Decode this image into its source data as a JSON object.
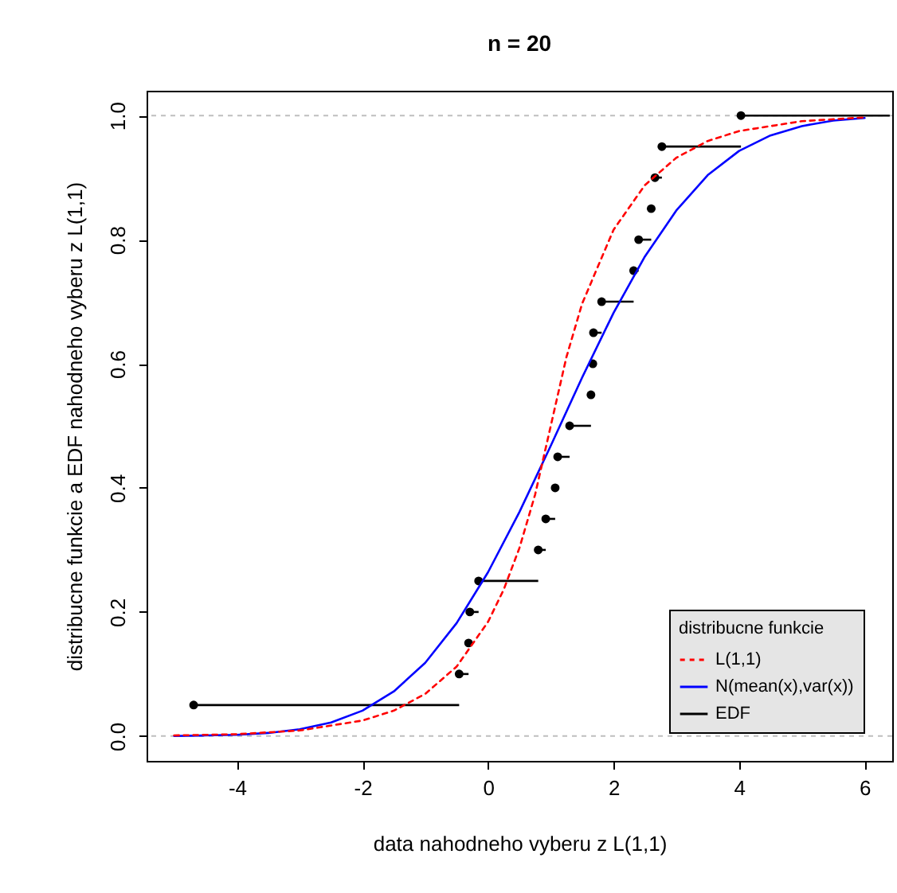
{
  "chart_data": {
    "type": "line",
    "title": "n = 20",
    "xlabel": "data nahodneho vyberu z L(1,1)",
    "ylabel": "distribucne funkcie a EDF nahodneho vyberu z L(1,1)",
    "legend_title": "distribucne funkcie",
    "xlim": [
      -5.44,
      6.44
    ],
    "ylim": [
      -0.04,
      1.04
    ],
    "xticks": [
      -4,
      -2,
      0,
      2,
      4,
      6
    ],
    "yticks": [
      {
        "value": 0,
        "label": "0.0"
      },
      0.2,
      0.4,
      0.6,
      0.8,
      {
        "value": 1,
        "label": "1.0"
      }
    ],
    "legend": "bottom right",
    "ref_lines": [
      {
        "axis": "y",
        "value": 0,
        "color": "#bebebe",
        "line_style": "dashed"
      },
      {
        "axis": "y",
        "value": 1,
        "color": "#bebebe",
        "line_style": "dashed"
      }
    ],
    "series": [
      {
        "name": "L(1,1)",
        "color": "#ff0000",
        "line_style": "dashed",
        "x": [
          -5,
          -4,
          -3,
          -2,
          -1.5,
          -1,
          -0.5,
          0,
          0.25,
          0.5,
          0.75,
          1,
          1.25,
          1.5,
          2,
          2.5,
          3,
          3.5,
          4,
          5,
          6
        ],
        "values": [
          0.001,
          0.003,
          0.009,
          0.025,
          0.041,
          0.068,
          0.112,
          0.184,
          0.236,
          0.303,
          0.389,
          0.5,
          0.611,
          0.697,
          0.816,
          0.888,
          0.932,
          0.959,
          0.975,
          0.991,
          0.997
        ]
      },
      {
        "name": "N(mean(x),var(x))",
        "color": "#0000ff",
        "line_style": "solid",
        "x": [
          -5,
          -4.5,
          -4,
          -3.5,
          -3,
          -2.5,
          -2,
          -1.5,
          -1,
          -0.5,
          0,
          0.5,
          1,
          1.5,
          2,
          2.5,
          3,
          3.5,
          4,
          4.5,
          5,
          5.5,
          6
        ],
        "values": [
          0.0,
          0.001,
          0.002,
          0.005,
          0.011,
          0.022,
          0.041,
          0.072,
          0.118,
          0.182,
          0.264,
          0.361,
          0.468,
          0.578,
          0.682,
          0.773,
          0.847,
          0.904,
          0.943,
          0.968,
          0.983,
          0.992,
          0.996
        ]
      },
      {
        "name": "EDF",
        "type": "scatter",
        "color": "#000000",
        "line_style": "solid",
        "marker": "circle",
        "x": [
          -4.69,
          -0.46,
          -0.31,
          -0.29,
          -0.15,
          0.8,
          0.92,
          1.07,
          1.11,
          1.3,
          1.64,
          1.67,
          1.68,
          1.81,
          2.32,
          2.4,
          2.6,
          2.66,
          2.77,
          4.03
        ],
        "values": [
          0.05,
          0.1,
          0.15,
          0.2,
          0.25,
          0.3,
          0.35,
          0.4,
          0.45,
          0.5,
          0.55,
          0.6,
          0.65,
          0.7,
          0.75,
          0.8,
          0.85,
          0.9,
          0.95,
          1.0
        ],
        "xerrors": [
          [
            -4.69,
            -0.46
          ],
          [
            -0.46,
            -0.31
          ],
          null,
          [
            -0.29,
            -0.15
          ],
          [
            -0.15,
            0.8
          ],
          [
            0.8,
            0.92
          ],
          [
            0.92,
            1.07
          ],
          [
            1.07,
            1.11
          ],
          [
            1.11,
            1.3
          ],
          [
            1.3,
            1.64
          ],
          [
            1.64,
            1.67
          ],
          null,
          [
            1.68,
            1.81
          ],
          [
            1.81,
            2.32
          ],
          [
            2.32,
            2.4
          ],
          [
            2.4,
            2.6
          ],
          [
            2.6,
            2.66
          ],
          [
            2.66,
            2.77
          ],
          [
            2.77,
            4.03
          ],
          [
            4.03,
            6.4
          ]
        ]
      }
    ]
  }
}
